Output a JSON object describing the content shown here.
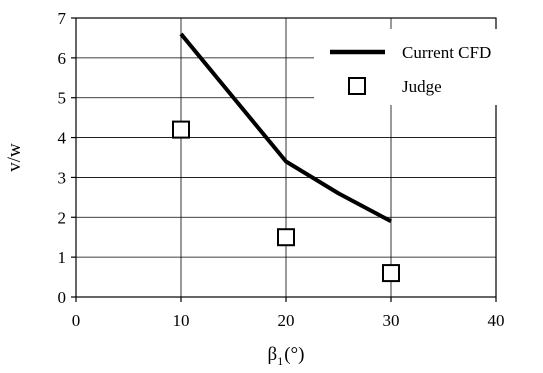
{
  "chart_data": {
    "type": "line",
    "xlabel": {
      "symbol": "β",
      "subscript": "1",
      "unit": "(°)"
    },
    "ylabel": "v/w",
    "xlim": [
      0,
      40
    ],
    "ylim": [
      0,
      7
    ],
    "x_ticks": [
      0,
      10,
      20,
      30,
      40
    ],
    "y_ticks": [
      0,
      1,
      2,
      3,
      4,
      5,
      6,
      7
    ],
    "grid": true,
    "legend_position": "top-right",
    "series": [
      {
        "name": "Current CFD",
        "style": "line",
        "color": "#000000",
        "points": [
          {
            "x": 10,
            "y": 6.6
          },
          {
            "x": 15,
            "y": 5.0
          },
          {
            "x": 20,
            "y": 3.4
          },
          {
            "x": 25,
            "y": 2.6
          },
          {
            "x": 30,
            "y": 1.9
          }
        ]
      },
      {
        "name": "Judge",
        "style": "square-marker",
        "color": "#000000",
        "points": [
          {
            "x": 10,
            "y": 4.2
          },
          {
            "x": 20,
            "y": 1.5
          },
          {
            "x": 30,
            "y": 0.6
          }
        ]
      }
    ]
  }
}
